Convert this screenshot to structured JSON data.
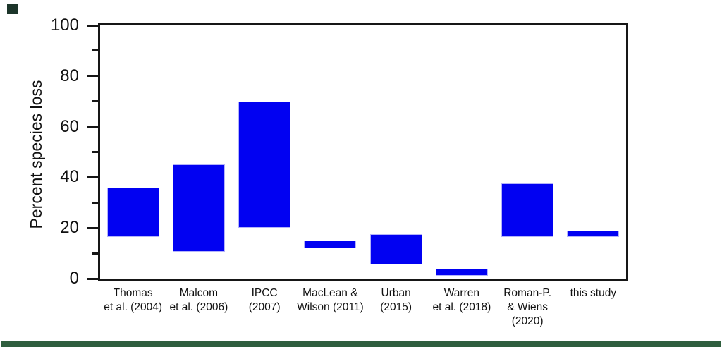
{
  "decor": {
    "top_left_square_color": "#1c352a",
    "bottom_bar_color": "#2f5e3e"
  },
  "chart_data": {
    "type": "bar",
    "subtype": "floating-range-bars",
    "title": "",
    "xlabel": "",
    "ylabel": "Percent species loss",
    "ylim": [
      0,
      100
    ],
    "grid": "off",
    "legend": "none",
    "bar_color": "#0101f2",
    "axis_color": "#161616",
    "y_major_ticks": [
      0,
      20,
      40,
      60,
      80,
      100
    ],
    "y_minor_ticks": [
      10,
      30,
      50,
      70,
      90
    ],
    "categories": [
      "Thomas et al. (2004)",
      "Malcom et al. (2006)",
      "IPCC (2007)",
      "MacLean & Wilson (2011)",
      "Urban (2015)",
      "Warren et al. (2018)",
      "Roman-P. & Wiens (2020)",
      "this study"
    ],
    "category_label_lines": [
      [
        "Thomas",
        "et al. (2004)"
      ],
      [
        "Malcom",
        "et al. (2006)"
      ],
      [
        "IPCC",
        "(2007)"
      ],
      [
        "MacLean &",
        "Wilson (2011)"
      ],
      [
        "Urban",
        "(2015)"
      ],
      [
        "Warren",
        "et al. (2018)"
      ],
      [
        "Roman-P.",
        "& Wiens",
        "(2020)"
      ],
      [
        "this study"
      ]
    ],
    "series": [
      {
        "name": "Percent species loss (range of estimates)",
        "ranges_min_max": [
          [
            16.5,
            36
          ],
          [
            10.5,
            45
          ],
          [
            20,
            70
          ],
          [
            12,
            15
          ],
          [
            5.5,
            17.5
          ],
          [
            1,
            4
          ],
          [
            16.5,
            37.5
          ],
          [
            16.5,
            19
          ]
        ]
      }
    ]
  }
}
